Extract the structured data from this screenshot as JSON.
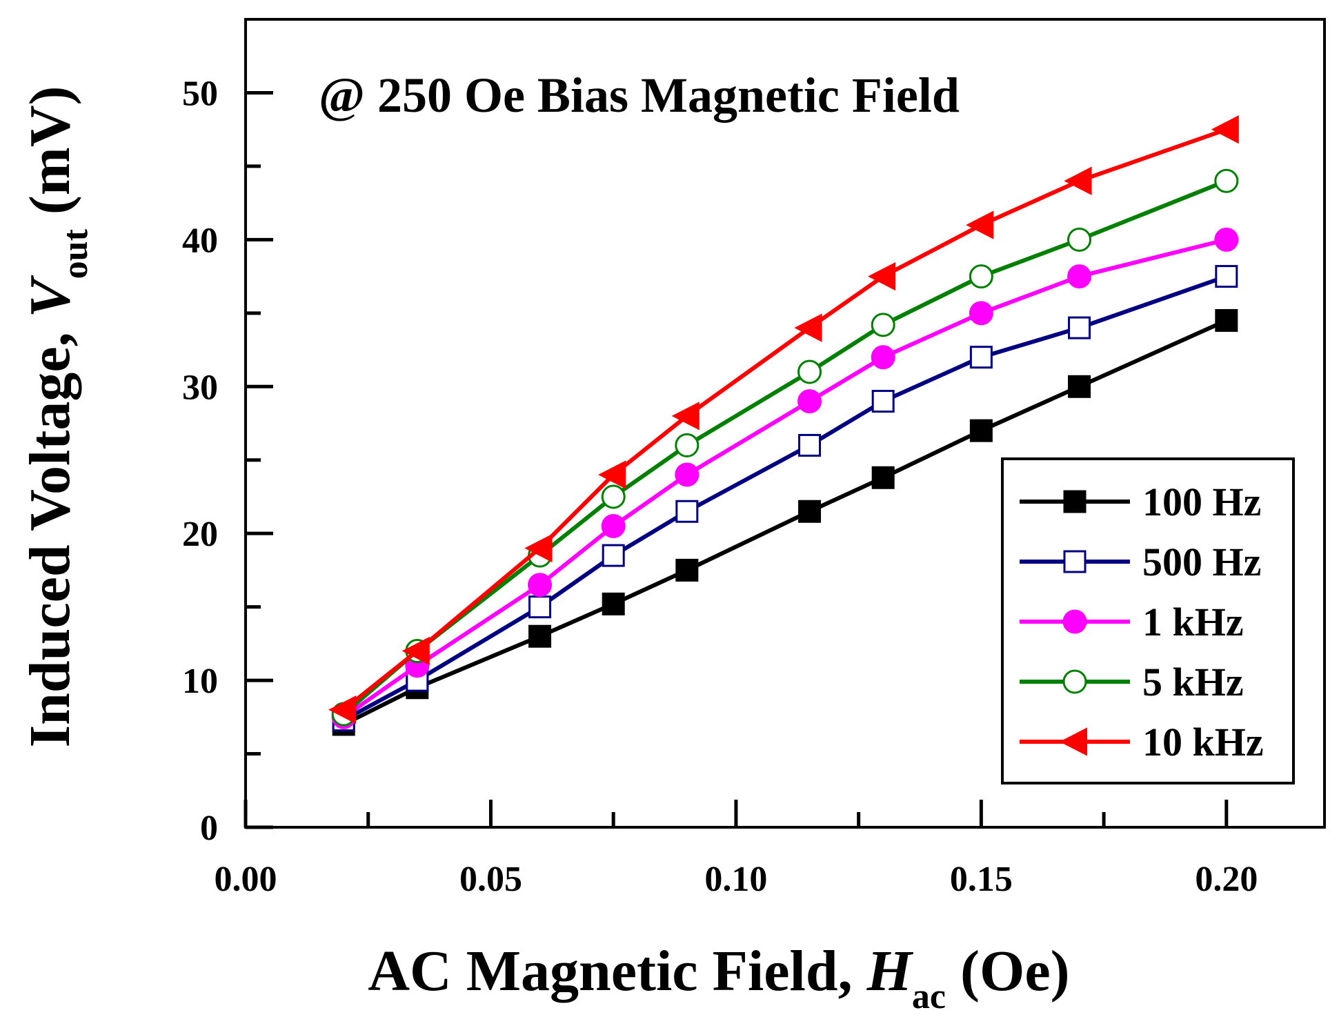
{
  "chart_data": {
    "type": "line",
    "annotation": "@ 250 Oe Bias Magnetic Field",
    "xlabel": {
      "main": "AC Magnetic Field, ",
      "italic": "H",
      "sub": "ac",
      "unit": " (Oe)"
    },
    "ylabel": {
      "main": "Induced Voltage, ",
      "italic": "V",
      "sub": "out",
      "unit": " (mV)"
    },
    "xlim": [
      0.0,
      0.22
    ],
    "ylim": [
      0,
      55
    ],
    "xticks": [
      0.0,
      0.05,
      0.1,
      0.15,
      0.2
    ],
    "xtick_labels": [
      "0.00",
      "0.05",
      "0.10",
      "0.15",
      "0.20"
    ],
    "yticks": [
      0,
      10,
      20,
      30,
      40,
      50
    ],
    "ytick_labels": [
      "0",
      "10",
      "20",
      "30",
      "40",
      "50"
    ],
    "x": [
      0.02,
      0.035,
      0.06,
      0.075,
      0.09,
      0.115,
      0.13,
      0.15,
      0.17,
      0.2
    ],
    "series": [
      {
        "name": "100 Hz",
        "color": "#000000",
        "marker": "square-filled",
        "values": [
          7.0,
          9.5,
          13.0,
          15.2,
          17.5,
          21.5,
          23.8,
          27.0,
          30.0,
          34.5
        ]
      },
      {
        "name": "500 Hz",
        "color": "#000080",
        "marker": "square-open",
        "values": [
          7.3,
          10.0,
          15.0,
          18.5,
          21.5,
          26.0,
          29.0,
          32.0,
          34.0,
          37.5
        ]
      },
      {
        "name": "1 kHz",
        "color": "#ff00ff",
        "marker": "circle-filled",
        "values": [
          7.5,
          11.0,
          16.5,
          20.5,
          24.0,
          29.0,
          32.0,
          35.0,
          37.5,
          40.0
        ]
      },
      {
        "name": "5 kHz",
        "color": "#008000",
        "marker": "circle-open",
        "values": [
          7.7,
          12.0,
          18.5,
          22.5,
          26.0,
          31.0,
          34.2,
          37.5,
          40.0,
          44.0
        ]
      },
      {
        "name": "10 kHz",
        "color": "#ff0000",
        "marker": "triangle-left-filled",
        "values": [
          8.0,
          12.0,
          19.0,
          24.0,
          28.0,
          34.0,
          37.5,
          41.0,
          44.0,
          47.5
        ]
      }
    ],
    "legend_position": "bottom-right"
  }
}
